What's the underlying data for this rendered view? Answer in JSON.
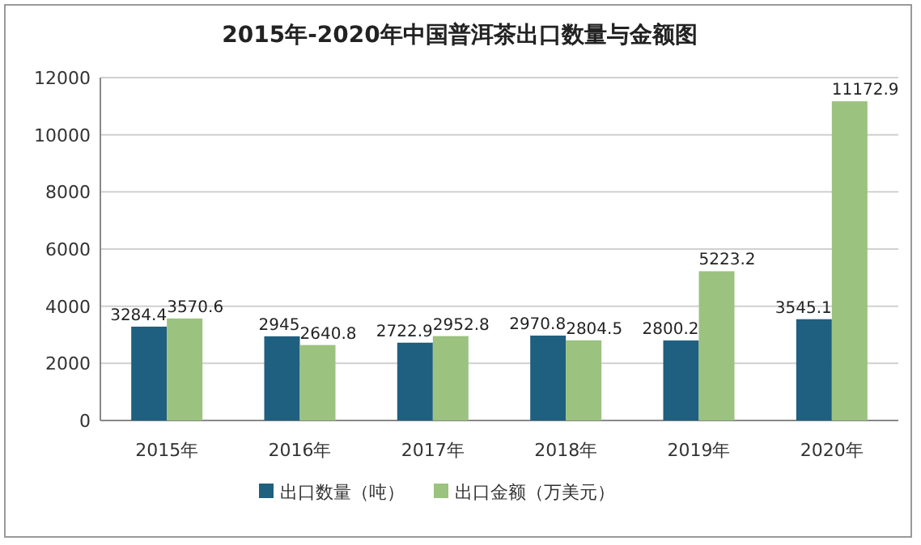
{
  "chart_data": {
    "type": "bar",
    "title": "2015年-2020年中国普洱茶出口数量与金额图",
    "categories": [
      "2015年",
      "2016年",
      "2017年",
      "2018年",
      "2019年",
      "2020年"
    ],
    "series": [
      {
        "name": "出口数量（吨）",
        "color": "#1f5f7f",
        "values": [
          3284.4,
          2945,
          2722.9,
          2970.8,
          2800.2,
          3545.1
        ]
      },
      {
        "name": "出口金额（万美元）",
        "color": "#9bc27f",
        "values": [
          3570.6,
          2640.8,
          2952.8,
          2804.5,
          5223.2,
          11172.9
        ]
      }
    ],
    "ylim": [
      0,
      12000
    ],
    "yticks": [
      0,
      2000,
      4000,
      6000,
      8000,
      10000,
      12000
    ],
    "grid": "y",
    "legend": "bottom",
    "data_labels": true
  }
}
